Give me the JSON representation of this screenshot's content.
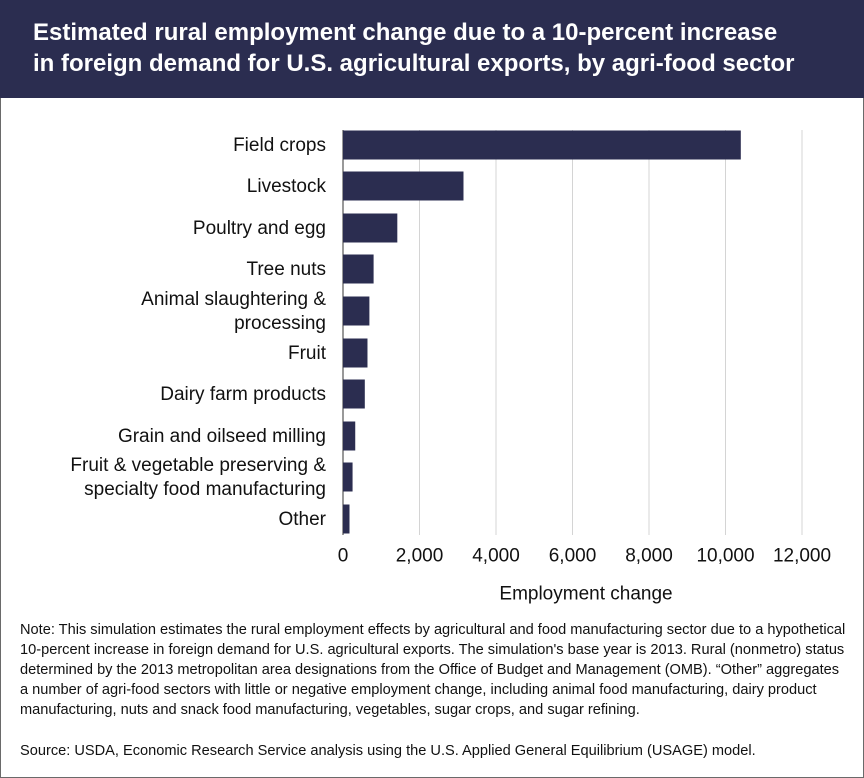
{
  "header": {
    "title_line1": "Estimated rural employment change due to a 10-percent increase",
    "title_line2": "in foreign demand for U.S. agricultural exports, by agri-food sector"
  },
  "chart_data": {
    "type": "bar",
    "orientation": "horizontal",
    "categories": [
      [
        "Field crops"
      ],
      [
        "Livestock"
      ],
      [
        "Poultry and egg"
      ],
      [
        "Tree nuts"
      ],
      [
        "Animal slaughtering &",
        "processing"
      ],
      [
        "Fruit"
      ],
      [
        "Dairy farm products"
      ],
      [
        "Grain and oilseed milling"
      ],
      [
        "Fruit & vegetable preserving &",
        "specialty food manufacturing"
      ],
      [
        "Other"
      ]
    ],
    "values": [
      10400,
      3150,
      1420,
      800,
      690,
      640,
      570,
      320,
      250,
      170
    ],
    "xlabel": "Employment change",
    "xlim": [
      0,
      12000
    ],
    "xticks": [
      0,
      2000,
      4000,
      6000,
      8000,
      10000,
      12000
    ],
    "xtick_labels": [
      "0",
      "2,000",
      "4,000",
      "6,000",
      "8,000",
      "10,000",
      "12,000"
    ],
    "grid": "vertical",
    "bar_color": "#2b2d50",
    "grid_color": "#d4d4d4"
  },
  "footer": {
    "note": "Note: This simulation estimates the rural employment effects by agricultural and food manufacturing sector due to a hypothetical 10-percent increase in foreign demand for U.S. agricultural exports. The simulation's base year is 2013. Rural (nonmetro) status determined by the 2013 metropolitan area designations from the Office of Budget and Management (OMB). “Other” aggregates a number of agri-food sectors with little or negative employment change, including animal food manufacturing, dairy product manufacturing, nuts and snack food manufacturing, vegetables, sugar crops, and sugar refining.",
    "source": "Source: USDA, Economic Research Service analysis using the U.S. Applied General Equilibrium (USAGE) model."
  }
}
